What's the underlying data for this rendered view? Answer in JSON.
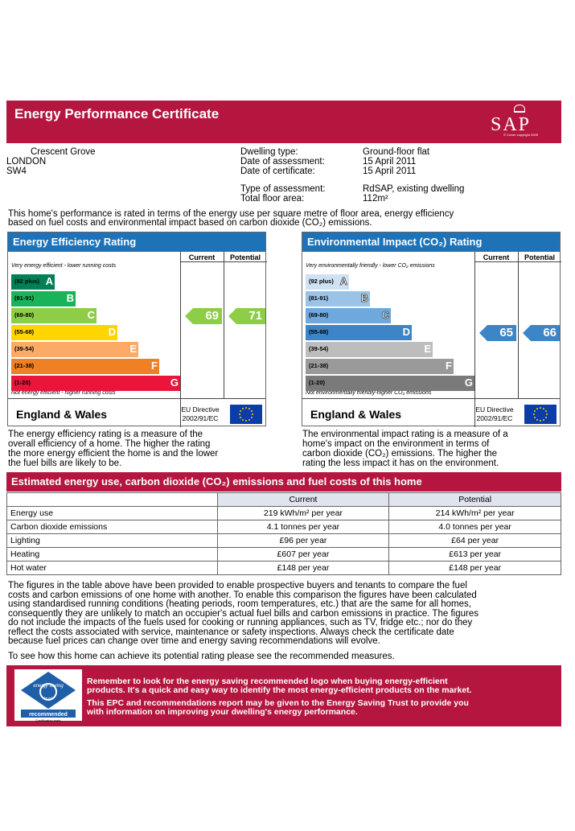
{
  "header": {
    "title": "Energy Performance Certificate",
    "logo_text": "SAP",
    "logo_copyright": "© Crown copyright 2005"
  },
  "address": {
    "line1": "Crescent Grove",
    "line2": "LONDON",
    "line3": "SW4"
  },
  "details": [
    {
      "label": "Dwelling type:",
      "value": "Ground-floor flat"
    },
    {
      "label": "Date of assessment:",
      "value": "15 April 2011"
    },
    {
      "label": "Date of certificate:",
      "value": "15 April 2011"
    },
    {
      "label": "Type of assessment:",
      "value": "RdSAP, existing dwelling"
    },
    {
      "label": "Total floor area:",
      "value": "112m²"
    }
  ],
  "intro": {
    "line1": "This home's performance is rated in terms of the energy use per square metre of floor area, energy efficiency",
    "line2": "based on fuel costs and environmental impact based on carbon dioxide (CO₂) emissions."
  },
  "energy_panel": {
    "title": "Energy Efficiency Rating",
    "col_current": "Current",
    "col_potential": "Potential",
    "top_caption": "Very energy efficient - lower running costs",
    "bottom_caption": "Not energy efficient - higher running costs",
    "bands": [
      {
        "range": "(92 plus)",
        "letter": "A",
        "color": "#008054"
      },
      {
        "range": "(81-91)",
        "letter": "B",
        "color": "#19b459"
      },
      {
        "range": "(69-80)",
        "letter": "C",
        "color": "#8dce46"
      },
      {
        "range": "(55-68)",
        "letter": "D",
        "color": "#ffd500"
      },
      {
        "range": "(39-54)",
        "letter": "E",
        "color": "#fcaa65"
      },
      {
        "range": "(21-38)",
        "letter": "F",
        "color": "#ef8023"
      },
      {
        "range": "(1-20)",
        "letter": "G",
        "color": "#e9153b"
      }
    ],
    "current": 69,
    "potential": 71,
    "arrow_color": "#8dce46",
    "region": "England & Wales",
    "directive_line1": "EU Directive",
    "directive_line2": "2002/91/EC"
  },
  "env_panel": {
    "title": "Environmental Impact (CO₂) Rating",
    "col_current": "Current",
    "col_potential": "Potential",
    "top_caption": "Very environmentally friendly - lower CO₂ emissions",
    "bottom_caption": "Not environmentally friendly-higher CO₂ emissions",
    "bands": [
      {
        "range": "(92 plus)",
        "letter": "A",
        "color": "#cfe2f3"
      },
      {
        "range": "(81-91)",
        "letter": "B",
        "color": "#9bc3e8"
      },
      {
        "range": "(69-80)",
        "letter": "C",
        "color": "#6fa8dc"
      },
      {
        "range": "(55-68)",
        "letter": "D",
        "color": "#3d85c6"
      },
      {
        "range": "(39-54)",
        "letter": "E",
        "color": "#bdbdbd"
      },
      {
        "range": "(21-38)",
        "letter": "F",
        "color": "#9a9a9a"
      },
      {
        "range": "(1-20)",
        "letter": "G",
        "color": "#7a7a7a"
      }
    ],
    "current": 65,
    "potential": 66,
    "arrow_color": "#3d85c6",
    "region": "England & Wales",
    "directive_line1": "EU Directive",
    "directive_line2": "2002/91/EC"
  },
  "energy_desc": [
    "The energy efficiency rating is a measure of the",
    "overall efficiency of a home. The higher the rating",
    "the more energy efficient the home is and the lower",
    "the fuel bills are likely to be."
  ],
  "env_desc": [
    "The environmental impact rating is a measure of a",
    "home's impact on the environment in terms of",
    "carbon dioxide (CO₂) emissions. The higher the",
    "rating the less impact it has on the environment."
  ],
  "estimated": {
    "title": "Estimated energy use, carbon dioxide (CO₂) emissions and fuel costs of this home",
    "col_current": "Current",
    "col_potential": "Potential",
    "rows": [
      {
        "label": "Energy use",
        "current": "219 kWh/m² per year",
        "potential": "214 kWh/m² per year"
      },
      {
        "label": "Carbon dioxide emissions",
        "current": "4.1 tonnes per year",
        "potential": "4.0 tonnes per year"
      },
      {
        "label": "Lighting",
        "current": "£96 per year",
        "potential": "£64 per year"
      },
      {
        "label": "Heating",
        "current": "£607 per year",
        "potential": "£613 per year"
      },
      {
        "label": "Hot water",
        "current": "£148 per year",
        "potential": "£148 per year"
      }
    ]
  },
  "figures_text": [
    "The figures in the table above have been provided to enable prospective buyers and tenants to compare the fuel",
    "costs and carbon emissions of one home with another. To enable this comparison the figures have been calculated",
    "using standardised running conditions (heating periods, room temperatures, etc.) that are the same for all homes,",
    "consequently they are unlikely to match an occupier's actual fuel bills and carbon emissions in practice. The figures",
    "do not include the impacts of the fuels used for cooking or running appliances, such as TV, fridge etc.; nor do they",
    "reflect the costs associated with service, maintenance or safety inspections. Always check the certificate date",
    "because fuel prices can change over time and energy saving recommendations will evolve."
  ],
  "see_text": "To see how this home can achieve its potential rating please see the recommended measures.",
  "banner": {
    "line1": "Remember to look for the energy saving recommended logo when buying energy-efficient",
    "line2": "products. It's a quick and easy way to identify the most energy-efficient products on the market.",
    "line3": "This EPC and recommendations report may be given to the Energy Saving Trust to provide you",
    "line4": "with information on improving your dwelling's energy performance.",
    "logo_top": "energy saving",
    "logo_trust": "trust",
    "logo_bottom": "recommended",
    "logo_caption": "Certification mark"
  }
}
